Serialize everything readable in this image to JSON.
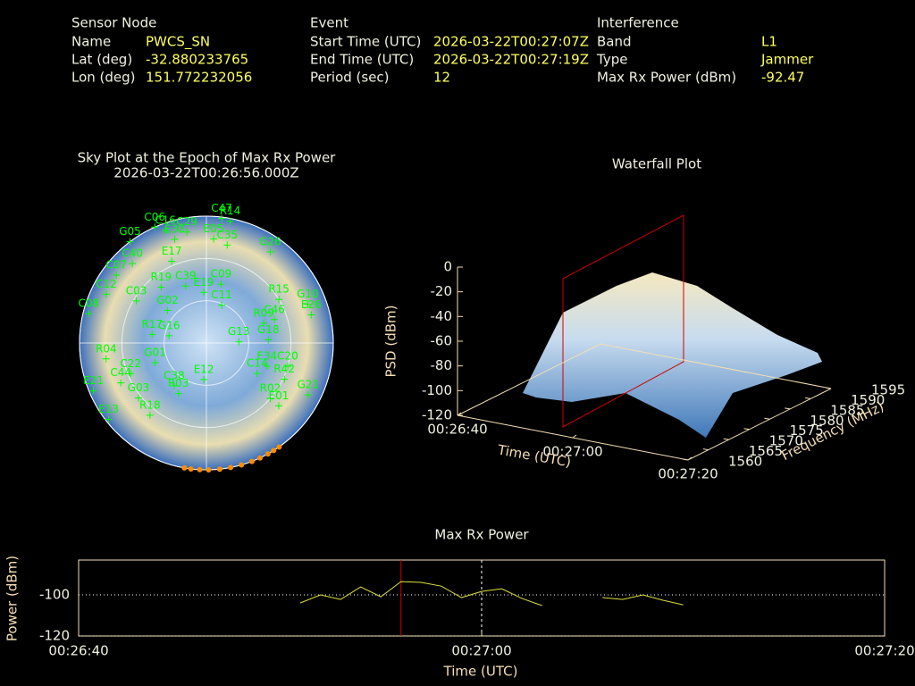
{
  "info": {
    "columns": [
      {
        "heading": "Sensor Node",
        "rows": [
          [
            "Name",
            "PWCS_SN"
          ],
          [
            "Lat (deg)",
            -32.880233765
          ],
          [
            "Lon (deg)",
            151.772232056
          ]
        ]
      },
      {
        "heading": "Event",
        "rows": [
          [
            "Start Time (UTC)",
            "2026-03-22T00:27:07Z"
          ],
          [
            "End Time (UTC)",
            "2026-03-22T00:27:19Z"
          ],
          [
            "Period (sec)",
            12
          ]
        ]
      },
      {
        "heading": "Interference",
        "rows": [
          [
            "Band",
            "L1"
          ],
          [
            "Type",
            "Jammer"
          ],
          [
            "Max Rx Power (dBm)",
            -92.47
          ]
        ]
      }
    ]
  },
  "chart_data": [
    {
      "type": "polar",
      "title": "Sky Plot at the Epoch of Max Rx Power",
      "subtitle": "2026-03-22T00:26:56.000Z",
      "rticks": [
        0,
        30,
        60
      ],
      "color": "#00ff00",
      "labels": [
        "C47",
        "R14",
        "C06",
        "C16",
        "C29",
        "E30",
        "G05",
        "E05",
        "C35",
        "G26",
        "C40",
        "E17",
        "C07",
        "C39",
        "C09",
        "R19",
        "E19",
        "R15",
        "C11",
        "C12",
        "C03",
        "G10",
        "G02",
        "C46",
        "E26",
        "C08",
        "R09",
        "R17",
        "G16",
        "G18",
        "G13",
        "R04",
        "G01",
        "C22",
        "E34",
        "C20",
        "E12",
        "C14",
        "E21",
        "C44",
        "C38",
        "R02",
        "G21",
        "G03",
        "R03",
        "E01",
        "R18",
        "E13",
        "R42"
      ],
      "az": [
        7,
        11,
        336,
        340,
        350,
        343,
        323,
        4,
        12,
        35,
        317,
        337,
        307,
        340,
        14,
        321,
        357,
        59,
        22,
        296,
        301,
        69,
        310,
        71,
        75,
        284,
        71,
        279,
        281,
        87,
        88,
        261,
        249,
        248,
        111,
        106,
        184,
        121,
        247,
        245,
        217,
        131,
        117,
        231,
        209,
        131,
        218,
        232,
        115
      ],
      "el": [
        1,
        2,
        0,
        5,
        10,
        13,
        0,
        16,
        19,
        11,
        13,
        27,
        10,
        47,
        47,
        39,
        54,
        30,
        61,
        11,
        32,
        13,
        54,
        39,
        13,
        4,
        47,
        51,
        63,
        46,
        67,
        18,
        51,
        32,
        44,
        30,
        64,
        48,
        3,
        23,
        52,
        30,
        9,
        28,
        49,
        22,
        25,
        2,
        29
      ],
      "track": {
        "color": "#ff8c00",
        "az": [
          190,
          187,
          183,
          179,
          174,
          169,
          164,
          159,
          155,
          151,
          148,
          145
        ],
        "el": [
          0,
          0,
          0,
          0,
          0,
          0,
          0,
          0,
          0,
          0,
          0,
          0
        ]
      }
    },
    {
      "type": "surface",
      "title": "Waterfall Plot",
      "xlabel": "Time (UTC)",
      "ylabel": "Frequency (MHz)",
      "zlabel": "PSD (dBm)",
      "xlim": [
        0,
        40
      ],
      "ylim": [
        1560,
        1595
      ],
      "zlim": [
        -120,
        0
      ],
      "xticks": [
        {
          "value": 0,
          "label": "00:26:40"
        },
        {
          "value": 20,
          "label": "00:27:00"
        },
        {
          "value": 40,
          "label": "00:27:20"
        }
      ],
      "yticks": [
        1560,
        1565,
        1570,
        1575,
        1580,
        1585,
        1590,
        1595
      ],
      "zticks": [
        -120,
        -100,
        -80,
        -60,
        -40,
        -20,
        0
      ]
    },
    {
      "type": "line",
      "title": "Max Rx Power",
      "xlabel": "Time (UTC)",
      "ylabel": "Power (dBm)",
      "xlim": [
        0,
        40
      ],
      "ylim": [
        -120,
        -83
      ],
      "xticks": [
        {
          "value": 0,
          "label": "00:26:40"
        },
        {
          "value": 20,
          "label": "00:27:00"
        },
        {
          "value": 40,
          "label": "00:27:20"
        }
      ],
      "yticks": [
        -120,
        -100
      ],
      "grid": true,
      "x": [
        11,
        12,
        13,
        14,
        15,
        16,
        17,
        18,
        19,
        20,
        21,
        22,
        23,
        24,
        25,
        26,
        27,
        28,
        29,
        30
      ],
      "series": [
        {
          "name": "Max Rx Power",
          "color": "#e0e040",
          "values": [
            -103.9,
            -100,
            -102.2,
            -96.1,
            -100.9,
            -93.5,
            -93.9,
            -95.7,
            -101.3,
            -98.3,
            -97,
            -101.7,
            -105.2,
            null,
            null,
            -101.3,
            -102.2,
            -100,
            -102.6,
            -104.8
          ]
        }
      ],
      "vlines": [
        {
          "x": 16,
          "color": "#d00000",
          "dash": false
        },
        {
          "x": 20,
          "color": "#ffffff",
          "dash": true
        }
      ]
    }
  ]
}
